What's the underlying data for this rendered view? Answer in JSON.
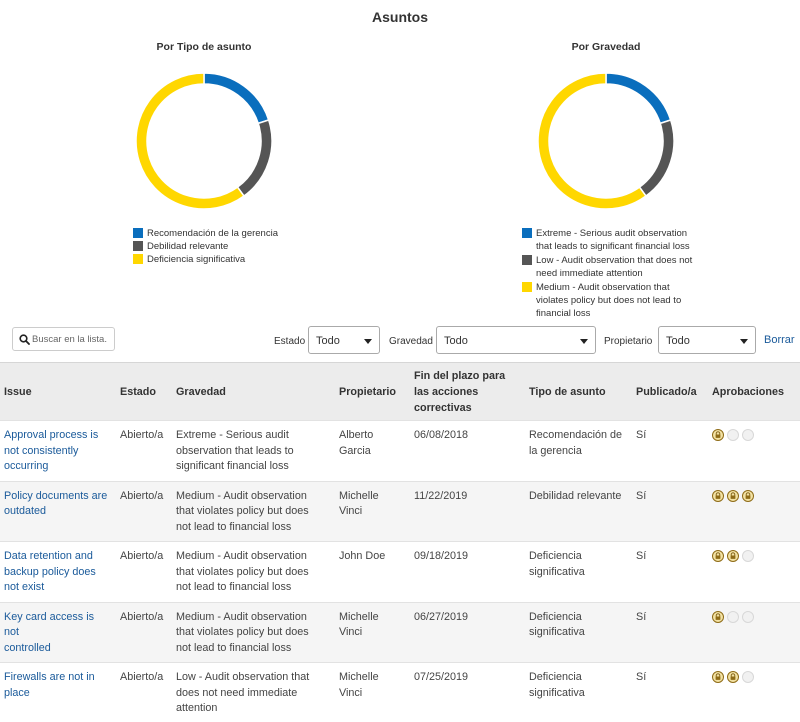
{
  "page": {
    "title": "Asuntos"
  },
  "chart_data": [
    {
      "type": "pie",
      "title": "Por Tipo de asunto",
      "categories": [
        "Recomendación de la gerencia",
        "Debilidad relevante",
        "Deficiencia significativa"
      ],
      "values": [
        1,
        1,
        3
      ],
      "colors": [
        "#0a6ebd",
        "#555555",
        "#ffd700"
      ],
      "legend_position": "bottom"
    },
    {
      "type": "pie",
      "title": "Por Gravedad",
      "categories": [
        "Extreme - Serious audit observation that leads to significant financial loss",
        "Low - Audit observation that does not need immediate attention",
        "Medium - Audit observation that violates policy but does not lead to financial loss"
      ],
      "values": [
        1,
        1,
        3
      ],
      "colors": [
        "#0a6ebd",
        "#555555",
        "#ffd700"
      ],
      "legend_position": "bottom"
    }
  ],
  "charts": {
    "left": {
      "legend": [
        [
          "Recomendación de la gerencia"
        ],
        [
          "Debilidad relevante"
        ],
        [
          "Deficiencia significativa"
        ]
      ]
    },
    "right": {
      "legend": [
        [
          "Extreme - Serious audit observation",
          "that leads to significant financial loss"
        ],
        [
          "Low - Audit observation that does not",
          "need immediate attention"
        ],
        [
          "Medium - Audit observation that",
          "violates policy but does not lead to",
          "financial loss"
        ]
      ]
    }
  },
  "toolbar": {
    "search_placeholder": "Buscar en la lista.",
    "estado_label": "Estado",
    "estado_value": "Todo",
    "gravedad_label": "Gravedad",
    "gravedad_value": "Todo",
    "propietario_label": "Propietario",
    "propietario_value": "Todo",
    "clear_label": "Borrar"
  },
  "table": {
    "headers": {
      "issue": "Issue",
      "estado": "Estado",
      "gravedad": "Gravedad",
      "propietario": "Propietario",
      "deadline": [
        "Fin del plazo para",
        "las acciones",
        "correctivas"
      ],
      "tipo": "Tipo de asunto",
      "publicado": "Publicado/a",
      "aprobaciones": "Aprobaciones"
    },
    "rows": [
      {
        "issue": [
          "Approval process is",
          "not consistently",
          "occurring"
        ],
        "estado": "Abierto/a",
        "gravedad": [
          "Extreme - Serious audit",
          "observation that leads to",
          "significant financial loss"
        ],
        "propietario": [
          "Alberto",
          "Garcia"
        ],
        "deadline": "06/08/2018",
        "tipo": [
          "Recomendación de",
          "la gerencia"
        ],
        "publicado": "Sí",
        "approvals": [
          1,
          0,
          0
        ]
      },
      {
        "issue": [
          "Policy documents are",
          "outdated"
        ],
        "estado": "Abierto/a",
        "gravedad": [
          "Medium - Audit observation",
          "that violates policy but does",
          "not lead to financial loss"
        ],
        "propietario": [
          "Michelle",
          "Vinci"
        ],
        "deadline": "11/22/2019",
        "tipo": [
          "Debilidad relevante"
        ],
        "publicado": "Sí",
        "approvals": [
          1,
          1,
          1
        ]
      },
      {
        "issue": [
          "Data retention and",
          "backup policy does",
          "not exist"
        ],
        "estado": "Abierto/a",
        "gravedad": [
          "Medium - Audit observation",
          "that violates policy but does",
          "not lead to financial loss"
        ],
        "propietario": [
          "John Doe"
        ],
        "deadline": "09/18/2019",
        "tipo": [
          "Deficiencia",
          "significativa"
        ],
        "publicado": "Sí",
        "approvals": [
          1,
          1,
          0
        ]
      },
      {
        "issue": [
          "Key card access is not",
          "controlled"
        ],
        "estado": "Abierto/a",
        "gravedad": [
          "Medium - Audit observation",
          "that violates policy but does",
          "not lead to financial loss"
        ],
        "propietario": [
          "Michelle",
          "Vinci"
        ],
        "deadline": "06/27/2019",
        "tipo": [
          "Deficiencia",
          "significativa"
        ],
        "publicado": "Sí",
        "approvals": [
          1,
          0,
          0
        ]
      },
      {
        "issue": [
          "Firewalls are not in",
          "place"
        ],
        "estado": "Abierto/a",
        "gravedad": [
          "Low - Audit observation that",
          "does not need immediate",
          "attention"
        ],
        "propietario": [
          "Michelle",
          "Vinci"
        ],
        "deadline": "07/25/2019",
        "tipo": [
          "Deficiencia",
          "significativa"
        ],
        "publicado": "Sí",
        "approvals": [
          1,
          1,
          0
        ]
      }
    ]
  }
}
